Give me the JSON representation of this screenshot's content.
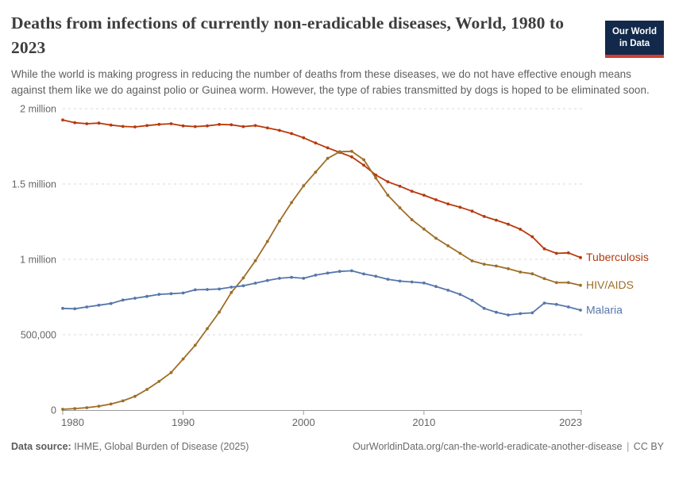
{
  "header": {
    "title": "Deaths from infections of currently non-eradicable diseases, World, 1980 to 2023",
    "subtitle": "While the world is making progress in reducing the number of deaths from these diseases, we do not have effective enough means against them like we do against polio or Guinea worm. However, the type of rabies transmitted by dogs is hoped to be eliminated soon.",
    "logo": {
      "line1": "Our World",
      "line2": "in Data"
    }
  },
  "footer": {
    "source_label": "Data source:",
    "source_value": "IHME, Global Burden of Disease (2025)",
    "url": "OurWorldinData.org/can-the-world-eradicate-another-disease",
    "separator": "|",
    "license": "CC BY"
  },
  "colors": {
    "tuberculosis": "#b8390d",
    "hiv_aids": "#9d6e28",
    "malaria": "#5776ab",
    "grid": "#d9d9d9",
    "axis": "#9b9b9b",
    "tick_text": "#666666",
    "logo_bg": "#12294b",
    "logo_stripe": "#d13d33"
  },
  "chart_data": {
    "type": "line",
    "title": "Deaths from infections of currently non-eradicable diseases, World, 1980 to 2023",
    "xlabel": "",
    "ylabel": "",
    "xlim": [
      1980,
      2023
    ],
    "ylim": [
      0,
      2000000
    ],
    "grid": "horizontal-dashed",
    "legend_position": "end-of-line-labels",
    "marker": "circle",
    "xticks": [
      1980,
      1990,
      2000,
      2010,
      2023
    ],
    "yticks": [
      {
        "value": 0,
        "label": "0"
      },
      {
        "value": 500000,
        "label": "500,000"
      },
      {
        "value": 1000000,
        "label": "1 million"
      },
      {
        "value": 1500000,
        "label": "1.5 million"
      },
      {
        "value": 2000000,
        "label": "2 million"
      }
    ],
    "x": [
      1980,
      1981,
      1982,
      1983,
      1984,
      1985,
      1986,
      1987,
      1988,
      1989,
      1990,
      1991,
      1992,
      1993,
      1994,
      1995,
      1996,
      1997,
      1998,
      1999,
      2000,
      2001,
      2002,
      2003,
      2004,
      2005,
      2006,
      2007,
      2008,
      2009,
      2010,
      2011,
      2012,
      2013,
      2014,
      2015,
      2016,
      2017,
      2018,
      2019,
      2020,
      2021,
      2022,
      2023
    ],
    "series": [
      {
        "name": "Tuberculosis",
        "color": "#b8390d",
        "values": [
          1925000,
          1907000,
          1900000,
          1904000,
          1891000,
          1882000,
          1879000,
          1888000,
          1896000,
          1900000,
          1886000,
          1881000,
          1886000,
          1895000,
          1893000,
          1881000,
          1888000,
          1872000,
          1856000,
          1835000,
          1807000,
          1772000,
          1740000,
          1710000,
          1680000,
          1625000,
          1560000,
          1515000,
          1485000,
          1452000,
          1426000,
          1395000,
          1368000,
          1346000,
          1320000,
          1285000,
          1260000,
          1233000,
          1200000,
          1150000,
          1070000,
          1040000,
          1043000,
          1012000
        ]
      },
      {
        "name": "HIV/AIDS",
        "color": "#9d6e28",
        "values": [
          5000,
          10000,
          16000,
          26000,
          40000,
          61000,
          91000,
          137000,
          190000,
          249000,
          339000,
          430000,
          540000,
          650000,
          780000,
          877000,
          991000,
          1119000,
          1254000,
          1377000,
          1488000,
          1579000,
          1670000,
          1714000,
          1717000,
          1661000,
          1540000,
          1426000,
          1342000,
          1263000,
          1201000,
          1140000,
          1090000,
          1040000,
          990000,
          968000,
          956000,
          938000,
          916000,
          904000,
          872000,
          846000,
          846000,
          828000
        ]
      },
      {
        "name": "Malaria",
        "color": "#5776ab",
        "values": [
          675000,
          672000,
          684000,
          696000,
          707000,
          730000,
          742000,
          754000,
          768000,
          772000,
          777000,
          798000,
          800000,
          803000,
          816000,
          825000,
          842000,
          860000,
          874000,
          881000,
          874000,
          895000,
          909000,
          920000,
          924000,
          903000,
          888000,
          868000,
          856000,
          850000,
          843000,
          820000,
          795000,
          768000,
          728000,
          675000,
          649000,
          631000,
          640000,
          645000,
          710000,
          701000,
          684000,
          663000
        ]
      }
    ]
  }
}
